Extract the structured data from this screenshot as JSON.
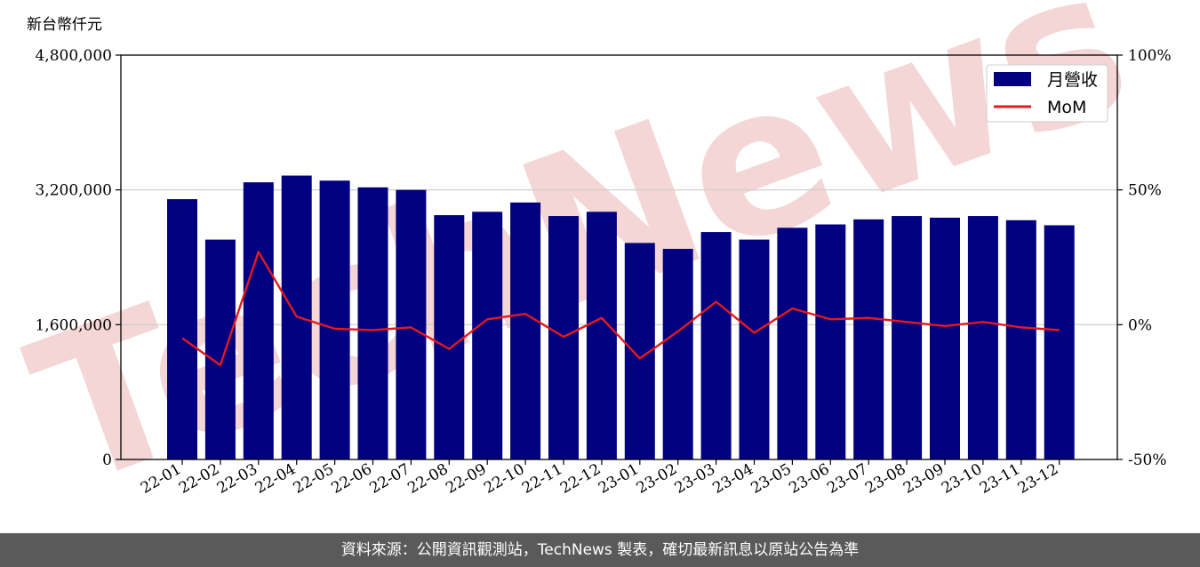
{
  "colors": {
    "bar": "#000080",
    "line": "#e31a1c",
    "grid": "#cccccc",
    "footer_bg": "#5a5a5a",
    "watermark": "#f4d6d6"
  },
  "watermark": {
    "text": "TechNews"
  },
  "footer": {
    "text": "資料來源：公開資訊觀測站，TechNews 製表，確切最新訊息以原站公告為準"
  },
  "chart_data": {
    "type": "bar",
    "unit_label": "新台幣仟元",
    "categories": [
      "22-01",
      "22-02",
      "22-03",
      "22-04",
      "22-05",
      "22-06",
      "22-07",
      "22-08",
      "22-09",
      "22-10",
      "22-11",
      "22-12",
      "23-01",
      "23-02",
      "23-03",
      "23-04",
      "23-05",
      "23-06",
      "23-07",
      "23-08",
      "23-09",
      "23-10",
      "23-11",
      "23-12"
    ],
    "series": [
      {
        "name": "月營收",
        "type": "bar",
        "axis": "left",
        "values": [
          3090000,
          2610000,
          3290000,
          3370000,
          3310000,
          3230000,
          3200000,
          2900000,
          2940000,
          3050000,
          2890000,
          2940000,
          2570000,
          2500000,
          2700000,
          2610000,
          2750000,
          2790000,
          2850000,
          2890000,
          2870000,
          2890000,
          2840000,
          2780000
        ]
      },
      {
        "name": "MoM",
        "type": "line",
        "axis": "right",
        "values": [
          -5,
          -15,
          27,
          3,
          -1.5,
          -2,
          -1,
          -9,
          2,
          4,
          -4.5,
          2.5,
          -12.5,
          -2.5,
          8.5,
          -3,
          6,
          2,
          2.5,
          1,
          -0.5,
          1,
          -1,
          -2
        ]
      }
    ],
    "y_left": {
      "range": [
        0,
        4800000
      ],
      "ticks": [
        0,
        1600000,
        3200000,
        4800000
      ],
      "tick_labels": [
        "0",
        "1,600,000",
        "3,200,000",
        "4,800,000"
      ]
    },
    "y_right": {
      "range": [
        -50,
        100
      ],
      "ticks": [
        -50,
        0,
        50,
        100
      ],
      "tick_labels": [
        "-50%",
        "0%",
        "50%",
        "100%"
      ]
    },
    "grid": true,
    "legend": "top-right"
  }
}
